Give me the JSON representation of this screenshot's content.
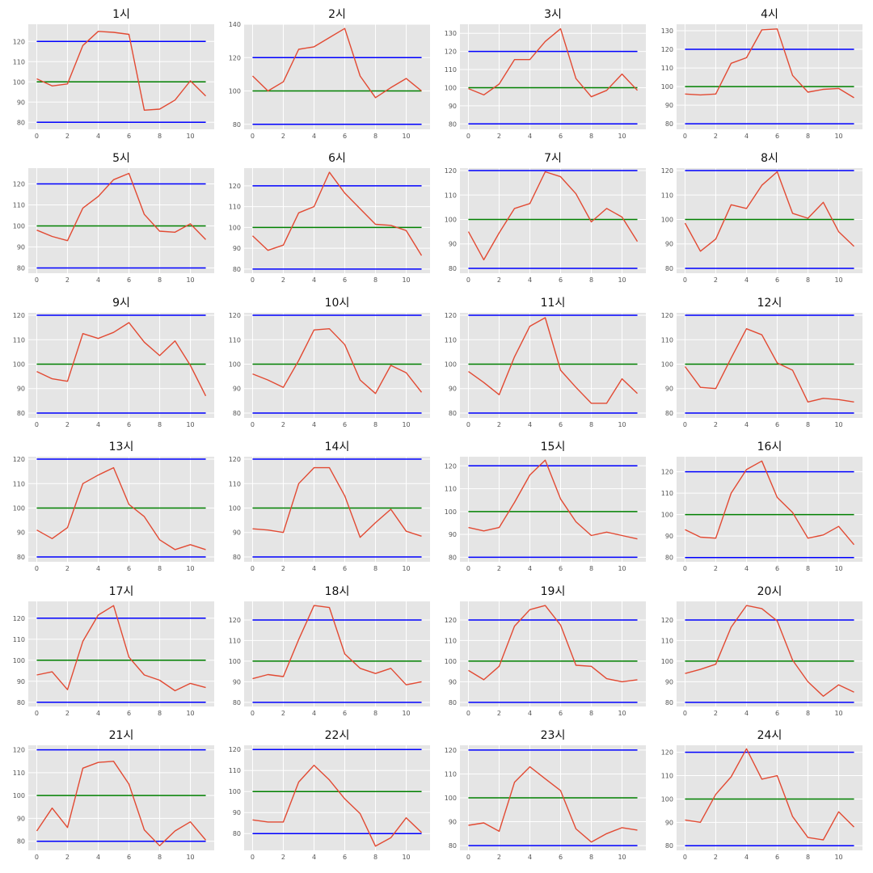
{
  "style": {
    "background": "#e5e5e5",
    "grid": "#ffffff",
    "series_color": "#e24a33",
    "upper_limit_color": "#0000ff",
    "center_line_color": "#008000",
    "lower_limit_color": "#0000ff"
  },
  "chart_data": [
    {
      "type": "line",
      "title": "1시",
      "x": [
        0,
        1,
        2,
        3,
        4,
        5,
        6,
        7,
        8,
        9,
        10,
        11
      ],
      "values": [
        101.5,
        98,
        99,
        118,
        125,
        124.5,
        123.5,
        86,
        86.5,
        91,
        100.5,
        93
      ],
      "upper": 120,
      "center": 100,
      "lower": 80,
      "ylim": [
        76.5,
        128.5
      ],
      "yticks": [
        80,
        90,
        100,
        110,
        120
      ],
      "xticks": [
        0,
        2,
        4,
        6,
        8,
        10
      ],
      "grid": true
    },
    {
      "type": "line",
      "title": "2시",
      "x": [
        0,
        1,
        2,
        3,
        4,
        5,
        6,
        7,
        8,
        9,
        10,
        11
      ],
      "values": [
        109,
        100,
        105.5,
        125,
        126.5,
        132,
        137.5,
        109,
        96,
        102,
        107.5,
        100
      ],
      "upper": 120,
      "center": 100,
      "lower": 80,
      "ylim": [
        77,
        140
      ],
      "yticks": [
        80,
        100,
        120,
        140
      ],
      "xticks": [
        0,
        2,
        4,
        6,
        8,
        10
      ],
      "grid": true
    },
    {
      "type": "line",
      "title": "3시",
      "x": [
        0,
        1,
        2,
        3,
        4,
        5,
        6,
        7,
        8,
        9,
        10,
        11
      ],
      "values": [
        99.5,
        96,
        102,
        115.5,
        115.5,
        125.5,
        132.5,
        105,
        95,
        98.5,
        107.5,
        98.5
      ],
      "upper": 120,
      "center": 100,
      "lower": 80,
      "ylim": [
        77,
        135
      ],
      "yticks": [
        80,
        90,
        100,
        110,
        120,
        130
      ],
      "xticks": [
        0,
        2,
        4,
        6,
        8,
        10
      ],
      "grid": true
    },
    {
      "type": "line",
      "title": "4시",
      "x": [
        0,
        1,
        2,
        3,
        4,
        5,
        6,
        7,
        8,
        9,
        10,
        11
      ],
      "values": [
        96,
        95.5,
        96,
        112.5,
        115.5,
        130.5,
        131,
        106,
        97,
        98.5,
        99,
        94
      ],
      "upper": 120,
      "center": 100,
      "lower": 80,
      "ylim": [
        77,
        133.5
      ],
      "yticks": [
        80,
        90,
        100,
        110,
        120,
        130
      ],
      "xticks": [
        0,
        2,
        4,
        6,
        8,
        10
      ],
      "grid": true
    },
    {
      "type": "line",
      "title": "5시",
      "x": [
        0,
        1,
        2,
        3,
        4,
        5,
        6,
        7,
        8,
        9,
        10,
        11
      ],
      "values": [
        98,
        95,
        93,
        108.5,
        114,
        122,
        125,
        105.5,
        97.5,
        97,
        101,
        93.5
      ],
      "upper": 120,
      "center": 100,
      "lower": 80,
      "ylim": [
        77.5,
        127.5
      ],
      "yticks": [
        80,
        90,
        100,
        110,
        120
      ],
      "xticks": [
        0,
        2,
        4,
        6,
        8,
        10
      ],
      "grid": true
    },
    {
      "type": "line",
      "title": "6시",
      "x": [
        0,
        1,
        2,
        3,
        4,
        5,
        6,
        7,
        8,
        9,
        10,
        11
      ],
      "values": [
        96,
        89,
        91.5,
        107,
        110,
        126.5,
        116.5,
        109,
        101.5,
        101,
        98.5,
        86.5
      ],
      "upper": 120,
      "center": 100,
      "lower": 80,
      "ylim": [
        78,
        128.5
      ],
      "yticks": [
        80,
        90,
        100,
        110,
        120
      ],
      "xticks": [
        0,
        2,
        4,
        6,
        8,
        10
      ],
      "grid": true
    },
    {
      "type": "line",
      "title": "7시",
      "x": [
        0,
        1,
        2,
        3,
        4,
        5,
        6,
        7,
        8,
        9,
        10,
        11
      ],
      "values": [
        95,
        83.5,
        94.5,
        104.5,
        106.5,
        119.5,
        117.5,
        110.5,
        99,
        104.5,
        101,
        91
      ],
      "upper": 120,
      "center": 100,
      "lower": 80,
      "ylim": [
        78,
        121
      ],
      "yticks": [
        80,
        90,
        100,
        110,
        120
      ],
      "xticks": [
        0,
        2,
        4,
        6,
        8,
        10
      ],
      "grid": true
    },
    {
      "type": "line",
      "title": "8시",
      "x": [
        0,
        1,
        2,
        3,
        4,
        5,
        6,
        7,
        8,
        9,
        10,
        11
      ],
      "values": [
        98.5,
        87,
        92,
        106,
        104.5,
        114,
        119.5,
        102.5,
        100.5,
        107,
        95,
        89
      ],
      "upper": 120,
      "center": 100,
      "lower": 80,
      "ylim": [
        78,
        121
      ],
      "yticks": [
        80,
        90,
        100,
        110,
        120
      ],
      "xticks": [
        0,
        2,
        4,
        6,
        8,
        10
      ],
      "grid": true
    },
    {
      "type": "line",
      "title": "9시",
      "x": [
        0,
        1,
        2,
        3,
        4,
        5,
        6,
        7,
        8,
        9,
        10,
        11
      ],
      "values": [
        97,
        94,
        93,
        112.5,
        110.5,
        113,
        117,
        109,
        103.5,
        109.5,
        99.5,
        87
      ],
      "upper": 120,
      "center": 100,
      "lower": 80,
      "ylim": [
        78,
        121
      ],
      "yticks": [
        80,
        90,
        100,
        110,
        120
      ],
      "xticks": [
        0,
        2,
        4,
        6,
        8,
        10
      ],
      "grid": true
    },
    {
      "type": "line",
      "title": "10시",
      "x": [
        0,
        1,
        2,
        3,
        4,
        5,
        6,
        7,
        8,
        9,
        10,
        11
      ],
      "values": [
        96,
        93.5,
        90.5,
        101.5,
        114,
        114.5,
        108,
        93.5,
        88,
        99.5,
        96.5,
        88.5
      ],
      "upper": 120,
      "center": 100,
      "lower": 80,
      "ylim": [
        78,
        121
      ],
      "yticks": [
        80,
        90,
        100,
        110,
        120
      ],
      "xticks": [
        0,
        2,
        4,
        6,
        8,
        10
      ],
      "grid": true
    },
    {
      "type": "line",
      "title": "11시",
      "x": [
        0,
        1,
        2,
        3,
        4,
        5,
        6,
        7,
        8,
        9,
        10,
        11
      ],
      "values": [
        97,
        92.5,
        87.5,
        103,
        115.5,
        119,
        97.5,
        90.5,
        84,
        84,
        94,
        88
      ],
      "upper": 120,
      "center": 100,
      "lower": 80,
      "ylim": [
        78,
        121
      ],
      "yticks": [
        80,
        90,
        100,
        110,
        120
      ],
      "xticks": [
        0,
        2,
        4,
        6,
        8,
        10
      ],
      "grid": true
    },
    {
      "type": "line",
      "title": "12시",
      "x": [
        0,
        1,
        2,
        3,
        4,
        5,
        6,
        7,
        8,
        9,
        10,
        11
      ],
      "values": [
        99,
        90.5,
        90,
        102.5,
        114.5,
        112,
        100.5,
        97.5,
        84.5,
        86,
        85.5,
        84.5
      ],
      "upper": 120,
      "center": 100,
      "lower": 80,
      "ylim": [
        78,
        121
      ],
      "yticks": [
        80,
        90,
        100,
        110,
        120
      ],
      "xticks": [
        0,
        2,
        4,
        6,
        8,
        10
      ],
      "grid": true
    },
    {
      "type": "line",
      "title": "13시",
      "x": [
        0,
        1,
        2,
        3,
        4,
        5,
        6,
        7,
        8,
        9,
        10,
        11
      ],
      "values": [
        91,
        87.5,
        92,
        110,
        113.5,
        116.5,
        101.5,
        96.5,
        87,
        83,
        85,
        83
      ],
      "upper": 120,
      "center": 100,
      "lower": 80,
      "ylim": [
        78,
        121
      ],
      "yticks": [
        80,
        90,
        100,
        110,
        120
      ],
      "xticks": [
        0,
        2,
        4,
        6,
        8,
        10
      ],
      "grid": true
    },
    {
      "type": "line",
      "title": "14시",
      "x": [
        0,
        1,
        2,
        3,
        4,
        5,
        6,
        7,
        8,
        9,
        10,
        11
      ],
      "values": [
        91.5,
        91,
        90,
        110,
        116.5,
        116.5,
        105,
        88,
        94,
        99.5,
        90.5,
        88.5
      ],
      "upper": 120,
      "center": 100,
      "lower": 80,
      "ylim": [
        78,
        121
      ],
      "yticks": [
        80,
        90,
        100,
        110,
        120
      ],
      "xticks": [
        0,
        2,
        4,
        6,
        8,
        10
      ],
      "grid": true
    },
    {
      "type": "line",
      "title": "15시",
      "x": [
        0,
        1,
        2,
        3,
        4,
        5,
        6,
        7,
        8,
        9,
        10,
        11
      ],
      "values": [
        93,
        91.5,
        93,
        104,
        116,
        122.5,
        105.5,
        95.5,
        89.5,
        91,
        89.5,
        88
      ],
      "upper": 120,
      "center": 100,
      "lower": 80,
      "ylim": [
        78,
        124
      ],
      "yticks": [
        80,
        90,
        100,
        110,
        120
      ],
      "xticks": [
        0,
        2,
        4,
        6,
        8,
        10
      ],
      "grid": true
    },
    {
      "type": "line",
      "title": "16시",
      "x": [
        0,
        1,
        2,
        3,
        4,
        5,
        6,
        7,
        8,
        9,
        10,
        11
      ],
      "values": [
        93,
        89.5,
        89,
        110,
        121,
        125,
        108,
        101,
        89,
        90.5,
        94.5,
        86
      ],
      "upper": 120,
      "center": 100,
      "lower": 80,
      "ylim": [
        78,
        127
      ],
      "yticks": [
        80,
        90,
        100,
        110,
        120
      ],
      "xticks": [
        0,
        2,
        4,
        6,
        8,
        10
      ],
      "grid": true
    },
    {
      "type": "line",
      "title": "17시",
      "x": [
        0,
        1,
        2,
        3,
        4,
        5,
        6,
        7,
        8,
        9,
        10,
        11
      ],
      "values": [
        93,
        94.5,
        86,
        109,
        121.5,
        126,
        101.5,
        93,
        90.5,
        85.5,
        89,
        87
      ],
      "upper": 120,
      "center": 100,
      "lower": 80,
      "ylim": [
        78,
        128
      ],
      "yticks": [
        80,
        90,
        100,
        110,
        120
      ],
      "xticks": [
        0,
        2,
        4,
        6,
        8,
        10
      ],
      "grid": true
    },
    {
      "type": "line",
      "title": "18시",
      "x": [
        0,
        1,
        2,
        3,
        4,
        5,
        6,
        7,
        8,
        9,
        10,
        11
      ],
      "values": [
        91.5,
        93.5,
        92.5,
        110.5,
        127,
        126,
        103.5,
        96.5,
        94,
        96.5,
        88.5,
        90
      ],
      "upper": 120,
      "center": 100,
      "lower": 80,
      "ylim": [
        78,
        129
      ],
      "yticks": [
        80,
        90,
        100,
        110,
        120
      ],
      "xticks": [
        0,
        2,
        4,
        6,
        8,
        10
      ],
      "grid": true
    },
    {
      "type": "line",
      "title": "19시",
      "x": [
        0,
        1,
        2,
        3,
        4,
        5,
        6,
        7,
        8,
        9,
        10,
        11
      ],
      "values": [
        95.5,
        91,
        97.5,
        117,
        125,
        127,
        117.5,
        98,
        97.5,
        91.5,
        90,
        91
      ],
      "upper": 120,
      "center": 100,
      "lower": 80,
      "ylim": [
        78,
        129
      ],
      "yticks": [
        80,
        90,
        100,
        110,
        120
      ],
      "xticks": [
        0,
        2,
        4,
        6,
        8,
        10
      ],
      "grid": true
    },
    {
      "type": "line",
      "title": "20시",
      "x": [
        0,
        1,
        2,
        3,
        4,
        5,
        6,
        7,
        8,
        9,
        10,
        11
      ],
      "values": [
        94,
        96,
        98.5,
        116.5,
        127,
        125.5,
        119.5,
        100.5,
        90,
        83,
        88.5,
        85
      ],
      "upper": 120,
      "center": 100,
      "lower": 80,
      "ylim": [
        78,
        129
      ],
      "yticks": [
        80,
        90,
        100,
        110,
        120
      ],
      "xticks": [
        0,
        2,
        4,
        6,
        8,
        10
      ],
      "grid": true
    },
    {
      "type": "line",
      "title": "21시",
      "x": [
        0,
        1,
        2,
        3,
        4,
        5,
        6,
        7,
        8,
        9,
        10,
        11
      ],
      "values": [
        84.5,
        94.5,
        86,
        112,
        114.5,
        115,
        105,
        85,
        78,
        84.5,
        88.5,
        80.5
      ],
      "upper": 120,
      "center": 100,
      "lower": 80,
      "ylim": [
        76,
        122
      ],
      "yticks": [
        80,
        90,
        100,
        110,
        120
      ],
      "xticks": [
        0,
        2,
        4,
        6,
        8,
        10
      ],
      "grid": true
    },
    {
      "type": "line",
      "title": "22시",
      "x": [
        0,
        1,
        2,
        3,
        4,
        5,
        6,
        7,
        8,
        9,
        10,
        11
      ],
      "values": [
        86.5,
        85.5,
        85.5,
        104.5,
        112.5,
        105.5,
        96.5,
        89.5,
        74,
        78,
        87.5,
        80.5
      ],
      "upper": 120,
      "center": 100,
      "lower": 80,
      "ylim": [
        72,
        122
      ],
      "yticks": [
        80,
        90,
        100,
        110,
        120
      ],
      "xticks": [
        0,
        2,
        4,
        6,
        8,
        10
      ],
      "grid": true
    },
    {
      "type": "line",
      "title": "23시",
      "x": [
        0,
        1,
        2,
        3,
        4,
        5,
        6,
        7,
        8,
        9,
        10,
        11
      ],
      "values": [
        88.5,
        89.5,
        86,
        106.5,
        113,
        108,
        103,
        87,
        81.5,
        85,
        87.5,
        86.5
      ],
      "upper": 120,
      "center": 100,
      "lower": 80,
      "ylim": [
        78,
        122
      ],
      "yticks": [
        80,
        90,
        100,
        110,
        120
      ],
      "xticks": [
        0,
        2,
        4,
        6,
        8,
        10
      ],
      "grid": true
    },
    {
      "type": "line",
      "title": "24시",
      "x": [
        0,
        1,
        2,
        3,
        4,
        5,
        6,
        7,
        8,
        9,
        10,
        11
      ],
      "values": [
        91,
        90,
        102,
        109.5,
        121.5,
        108.5,
        110,
        92.5,
        83.5,
        82.5,
        94.5,
        88
      ],
      "upper": 120,
      "center": 100,
      "lower": 80,
      "ylim": [
        78,
        123
      ],
      "yticks": [
        80,
        90,
        100,
        110,
        120
      ],
      "xticks": [
        0,
        2,
        4,
        6,
        8,
        10
      ],
      "grid": true
    }
  ]
}
